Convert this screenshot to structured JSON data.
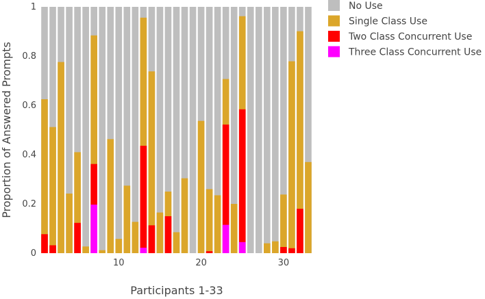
{
  "chart_data": {
    "type": "bar",
    "stacked": "overlay",
    "xlabel": "Participants 1-33",
    "ylabel": "Proportion of Answered Prompts",
    "ylim": [
      0,
      1
    ],
    "xlim": [
      0.5,
      33.5
    ],
    "x_ticks": [
      10,
      20,
      30
    ],
    "y_ticks": [
      0,
      0.2,
      0.4,
      0.6,
      0.8,
      1
    ],
    "y_tick_labels": [
      "0",
      "0.2",
      "0.4",
      "0.6",
      "0.8",
      "1"
    ],
    "grid": false,
    "legend_position": "top-right",
    "x": [
      1,
      2,
      3,
      4,
      5,
      6,
      7,
      8,
      9,
      10,
      11,
      12,
      13,
      14,
      15,
      16,
      17,
      18,
      19,
      20,
      21,
      22,
      23,
      24,
      25,
      26,
      27,
      28,
      29,
      30,
      31,
      32,
      33
    ],
    "series": [
      {
        "name": "No Use",
        "color": "#bebebe",
        "values": [
          1,
          1,
          1,
          1,
          1,
          1,
          1,
          1,
          1,
          1,
          1,
          1,
          1,
          1,
          1,
          1,
          1,
          1,
          1,
          1,
          1,
          1,
          1,
          1,
          1,
          1,
          1,
          1,
          1,
          1,
          1,
          1,
          1
        ]
      },
      {
        "name": "Single Class Use",
        "color": "#dba62a",
        "values": [
          0.625,
          0.512,
          0.776,
          0.242,
          0.41,
          0.027,
          0.884,
          0.012,
          0.463,
          0.058,
          0.274,
          0.127,
          0.956,
          0.738,
          0.165,
          0.25,
          0.085,
          0.304,
          0,
          0.537,
          0.26,
          0.235,
          0.707,
          0.2,
          0.962,
          0,
          0,
          0.04,
          0.048,
          0.238,
          0.779,
          0.901,
          0.37
        ]
      },
      {
        "name": "Two Class Concurrent Use",
        "color": "#ff0000",
        "values": [
          0.077,
          0.032,
          0,
          0,
          0.123,
          0,
          0.362,
          0,
          0,
          0,
          0,
          0,
          0.436,
          0.113,
          0,
          0.15,
          0,
          0,
          0,
          0,
          0.008,
          0,
          0.522,
          0,
          0.584,
          0,
          0,
          0,
          0,
          0.025,
          0.02,
          0.18,
          0
        ]
      },
      {
        "name": "Three Class Concurrent Use",
        "color": "#ff00ff",
        "values": [
          0,
          0,
          0,
          0,
          0,
          0,
          0.197,
          0,
          0,
          0,
          0,
          0,
          0.022,
          0,
          0,
          0,
          0,
          0,
          0,
          0,
          0,
          0,
          0.115,
          0,
          0.045,
          0,
          0,
          0,
          0,
          0,
          0,
          0,
          0
        ]
      }
    ]
  }
}
